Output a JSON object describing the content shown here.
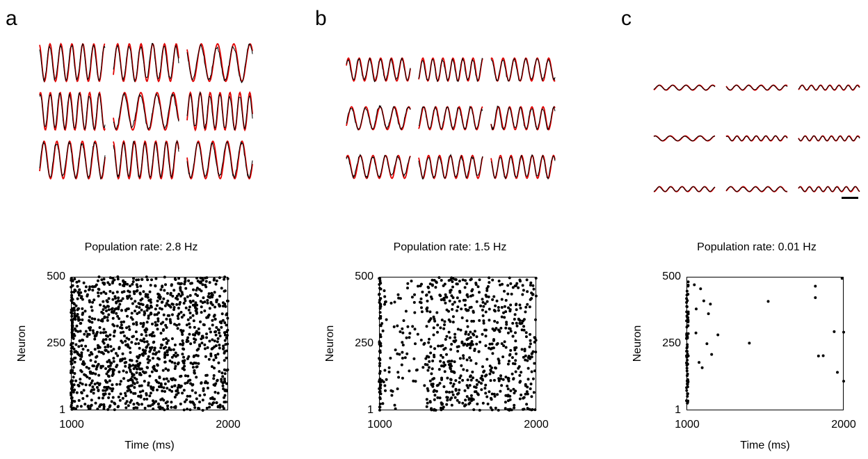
{
  "colors": {
    "model": "#e00000",
    "data": "#000000"
  },
  "panels": [
    {
      "letter": "a",
      "rate_title": "Population rate: 2.8 Hz",
      "amplitude": 0.9,
      "noise": 0.35,
      "raster": {
        "y_ticks": [
          "500",
          "250",
          "1"
        ],
        "x_ticks": [
          "1000",
          "2000"
        ],
        "ylabel": "Neuron",
        "xlabel": "Time (ms)",
        "density": 1250,
        "edge_burst": 60
      }
    },
    {
      "letter": "b",
      "rate_title": "Population rate: 1.5 Hz",
      "amplitude": 0.55,
      "noise": 0.3,
      "raster": {
        "y_ticks": [
          "500",
          "250",
          "1"
        ],
        "x_ticks": [
          "1000",
          "2000"
        ],
        "ylabel": "Neuron",
        "xlabel": "",
        "density": 720,
        "edge_burst": 55
      }
    },
    {
      "letter": "c",
      "rate_title": "Population rate: 0.01 Hz",
      "amplitude": 0.12,
      "noise": 0.05,
      "raster": {
        "y_ticks": [
          "500",
          "250",
          "1"
        ],
        "x_ticks": [
          "1000",
          "2000"
        ],
        "ylabel": "Neuron",
        "xlabel": "Time (ms)",
        "density": 0,
        "edge_burst": 75,
        "sparse_points": [
          [
            1050,
            470
          ],
          [
            1062,
            380
          ],
          [
            1090,
            455
          ],
          [
            1140,
            362
          ],
          [
            1110,
            410
          ],
          [
            1152,
            398
          ],
          [
            1200,
            283
          ],
          [
            1400,
            252
          ],
          [
            1520,
            408
          ],
          [
            1820,
            465
          ],
          [
            1820,
            422
          ],
          [
            1840,
            204
          ],
          [
            1870,
            205
          ],
          [
            1940,
            295
          ],
          [
            1960,
            143
          ],
          [
            2000,
            110
          ],
          [
            2000,
            293
          ],
          [
            1990,
            494
          ],
          [
            1060,
            290
          ],
          [
            1080,
            180
          ],
          [
            1100,
            160
          ],
          [
            1130,
            250
          ],
          [
            1160,
            210
          ]
        ]
      }
    }
  ],
  "chart_data": [
    {
      "type": "line",
      "title": "",
      "description": "3x3 grid of voltage traces, model (red) vs data (black)",
      "rate_hz": 2.8
    },
    {
      "type": "scatter",
      "title": "Population rate: 2.8 Hz",
      "xlabel": "Time (ms)",
      "ylabel": "Neuron",
      "xlim": [
        1000,
        2000
      ],
      "ylim": [
        1,
        500
      ]
    },
    {
      "type": "line",
      "title": "",
      "rate_hz": 1.5
    },
    {
      "type": "scatter",
      "title": "Population rate: 1.5 Hz",
      "xlabel": "",
      "ylabel": "Neuron",
      "xlim": [
        1000,
        2000
      ],
      "ylim": [
        1,
        500
      ]
    },
    {
      "type": "line",
      "title": "",
      "rate_hz": 0.01
    },
    {
      "type": "scatter",
      "title": "Population rate: 0.01 Hz",
      "xlabel": "Time (ms)",
      "ylabel": "Neuron",
      "xlim": [
        1000,
        2000
      ],
      "ylim": [
        1,
        500
      ]
    }
  ]
}
